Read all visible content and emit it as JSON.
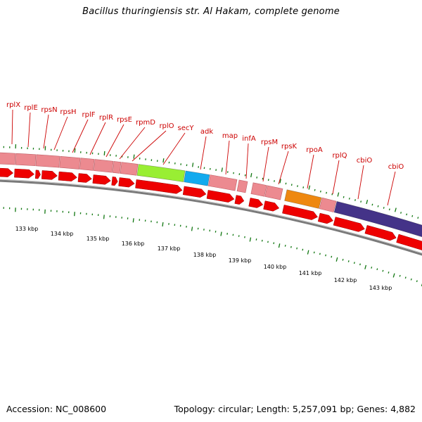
{
  "title": "Bacillus thuringiensis str. Al Hakam, complete genome",
  "footer": {
    "accession": "Accession: NC_008600",
    "summary": "Topology: circular; Length: 5,257,091 bp; Genes: 4,882"
  },
  "colors": {
    "arrow_red": "#ee0000",
    "feature_pink": "#ec8a90",
    "gene_label_red": "#cc0000",
    "tick_green": "#117711",
    "backbone_gray": "#7a7a7a",
    "gene_green": "#99ee33",
    "gene_cyan": "#11aaee",
    "gene_orange": "#ee8811",
    "gene_purple": "#443388"
  },
  "kbp_labels": [
    "133 kbp",
    "134 kbp",
    "135 kbp",
    "136 kbp",
    "137 kbp",
    "138 kbp",
    "139 kbp",
    "140 kbp",
    "141 kbp",
    "142 kbp",
    "143 kbp"
  ],
  "gene_labels": [
    {
      "name": "rplX"
    },
    {
      "name": "rplE"
    },
    {
      "name": "rpsN"
    },
    {
      "name": "rpsH"
    },
    {
      "name": "rplF"
    },
    {
      "name": "rplR"
    },
    {
      "name": "rpsE"
    },
    {
      "name": "rpmD"
    },
    {
      "name": "rplO"
    },
    {
      "name": "secY"
    },
    {
      "name": "adk"
    },
    {
      "name": "map"
    },
    {
      "name": "infA"
    },
    {
      "name": "rpsM"
    },
    {
      "name": "rpsK"
    },
    {
      "name": "rpoA"
    },
    {
      "name": "rplQ"
    },
    {
      "name": "cbiO"
    },
    {
      "name": "cbiO"
    }
  ]
}
